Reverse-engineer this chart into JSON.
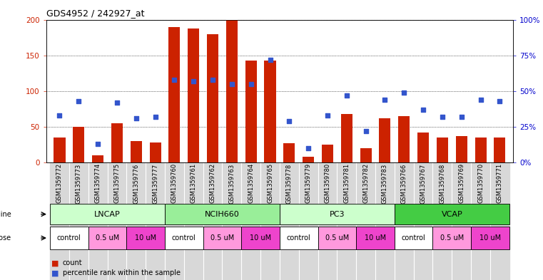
{
  "title": "GDS4952 / 242927_at",
  "samples": [
    "GSM1359772",
    "GSM1359773",
    "GSM1359774",
    "GSM1359775",
    "GSM1359776",
    "GSM1359777",
    "GSM1359760",
    "GSM1359761",
    "GSM1359762",
    "GSM1359763",
    "GSM1359764",
    "GSM1359765",
    "GSM1359778",
    "GSM1359779",
    "GSM1359780",
    "GSM1359781",
    "GSM1359782",
    "GSM1359783",
    "GSM1359766",
    "GSM1359767",
    "GSM1359768",
    "GSM1359769",
    "GSM1359770",
    "GSM1359771"
  ],
  "counts": [
    35,
    50,
    10,
    55,
    30,
    28,
    190,
    188,
    180,
    200,
    143,
    143,
    27,
    8,
    25,
    68,
    20,
    62,
    65,
    42,
    35,
    37,
    35,
    35
  ],
  "percentiles": [
    33,
    43,
    13,
    42,
    31,
    32,
    58,
    57,
    58,
    55,
    55,
    72,
    29,
    10,
    33,
    47,
    22,
    44,
    49,
    37,
    32,
    32,
    44,
    43
  ],
  "cell_lines": [
    "LNCAP",
    "NCIH660",
    "PC3",
    "VCAP"
  ],
  "cell_line_spans": [
    [
      0,
      6
    ],
    [
      6,
      12
    ],
    [
      12,
      18
    ],
    [
      18,
      24
    ]
  ],
  "cell_line_colors": [
    "#ccffcc",
    "#99ee99",
    "#ccffcc",
    "#44cc44"
  ],
  "dose_labels": [
    "control",
    "0.5 uM",
    "10 uM"
  ],
  "dose_colors": [
    "#ffffff",
    "#ff99dd",
    "#ee44cc"
  ],
  "bar_color": "#cc2200",
  "dot_color": "#3355cc",
  "ylim_left": [
    0,
    200
  ],
  "ylim_right": [
    0,
    100
  ],
  "yticks_left": [
    0,
    50,
    100,
    150,
    200
  ],
  "yticks_right": [
    0,
    25,
    50,
    75,
    100
  ],
  "ytick_labels_right": [
    "0%",
    "25%",
    "50%",
    "75%",
    "100%"
  ]
}
